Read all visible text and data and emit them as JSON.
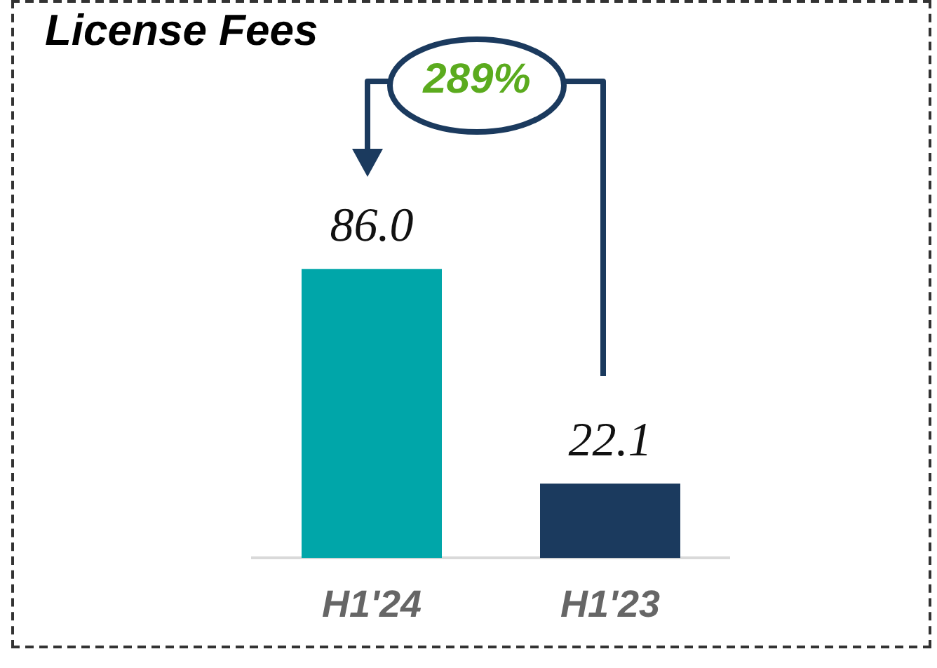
{
  "chart_data": {
    "type": "bar",
    "title": "License Fees",
    "categories": [
      "H1'24",
      "H1'23"
    ],
    "values": [
      86.0,
      22.1
    ],
    "colors": [
      "#00a6a9",
      "#1b3a5e"
    ],
    "value_labels": [
      "86.0",
      "22.1"
    ],
    "grid": false,
    "legend": false,
    "tick_labels": "x",
    "annotations": [
      "289%"
    ]
  }
}
